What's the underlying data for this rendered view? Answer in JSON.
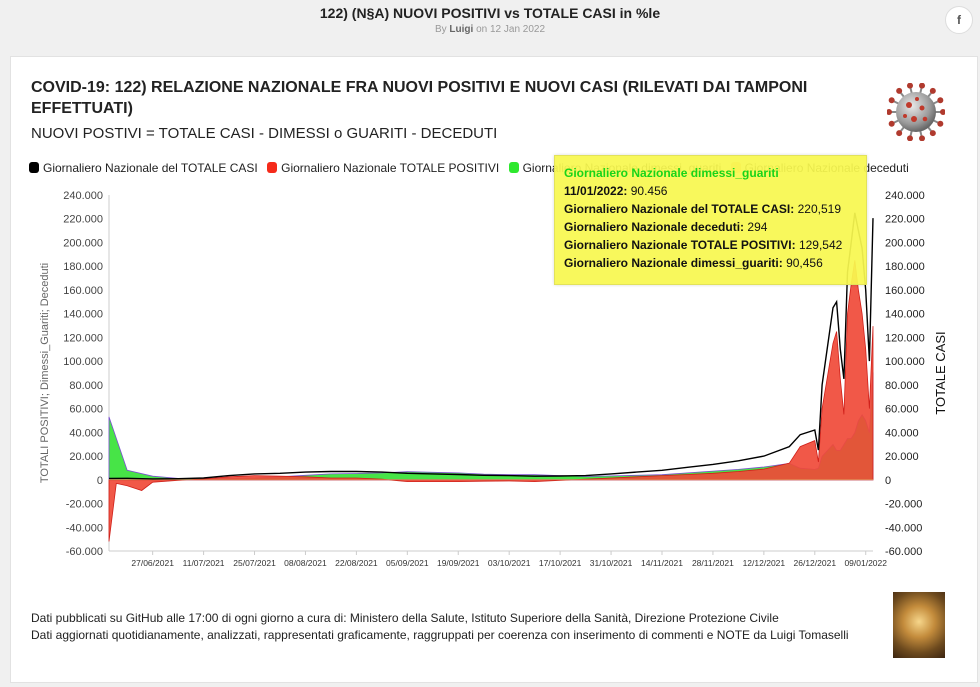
{
  "page": {
    "doc_title": "122) (N§A) NUOVI POSITIVI vs TOTALE CASI in %le",
    "byline_prefix": "By",
    "author": "Luigi",
    "byline_suffix": "on 12 Jan 2022",
    "share_icons": [
      "facebook-icon",
      "twitter-icon"
    ]
  },
  "chart_header": {
    "title": "COVID-19: 122) RELAZIONE NAZIONALE FRA NUOVI POSITIVI E NUOVI CASI (RILEVATI DAI TAMPONI EFFETTUATI)",
    "subtitle": "NUOVI POSTIVI = TOTALE CASI - DIMESSI o GUARITI - DECEDUTI",
    "icon": "coronavirus-icon"
  },
  "legend": [
    {
      "label": "Giornaliero Nazionale del TOTALE CASI",
      "color": "#000000"
    },
    {
      "label": "Giornaliero Nazionale TOTALE POSITIVI",
      "color": "#f52a1a"
    },
    {
      "label": "Giornaliero Nazionale dimessi_guariti",
      "color": "#2ee82e"
    },
    {
      "label": "Giornaliero Nazionale deceduti",
      "color": "#f5b38a"
    }
  ],
  "tooltip": {
    "title": "Giornaliero Nazionale dimessi_guariti",
    "rows": [
      {
        "label": "11/01/2022:",
        "value": "90.456"
      },
      {
        "label": "Giornaliero Nazionale del TOTALE CASI:",
        "value": "220,519"
      },
      {
        "label": "Giornaliero Nazionale deceduti:",
        "value": "294"
      },
      {
        "label": "Giornaliero Nazionale TOTALE POSITIVI:",
        "value": "129,542"
      },
      {
        "label": "Giornaliero Nazionale dimessi_guariti:",
        "value": "90,456"
      }
    ]
  },
  "footer": {
    "line1": "Dati pubblicati su GitHub alle 17:00 di ogni giorno a cura di: Ministero della Salute, Istituto Superiore della Sanità, Direzione Protezione Civile",
    "line2": "Dati aggiornati quotidianamente, analizzati, rappresentati graficamente, raggruppati per coerenza con inserimento di commenti e NOTE da Luigi Tomaselli"
  },
  "chart_data": {
    "type": "area",
    "ylabel_left": "TOTALI POSITIVI; Dimessi_Guariti; Deceduti",
    "ylabel_right": "TOTALE CASI",
    "ylim": [
      -60000,
      240000
    ],
    "yticks_left": [
      "240.000",
      "220.000",
      "200.000",
      "180.000",
      "160.000",
      "140.000",
      "120.000",
      "100.000",
      "80.000",
      "60.000",
      "40.000",
      "20.000",
      "0",
      "-20.000",
      "-40.000",
      "-60.000"
    ],
    "yticks_right": [
      "240.000",
      "220.000",
      "200.000",
      "180.000",
      "160.000",
      "140.000",
      "120.000",
      "100.000",
      "80.000",
      "60.000",
      "40.000",
      "20.000",
      "0",
      "-20.000",
      "-40.000",
      "-60.000"
    ],
    "xticks": [
      "27/06/2021",
      "11/07/2021",
      "25/07/2021",
      "08/08/2021",
      "22/08/2021",
      "05/09/2021",
      "19/09/2021",
      "03/10/2021",
      "17/10/2021",
      "31/10/2021",
      "14/11/2021",
      "28/11/2021",
      "12/12/2021",
      "26/12/2021",
      "09/01/2022"
    ],
    "x_range": [
      "2021-06-15",
      "2022-01-11"
    ],
    "series": [
      {
        "name": "Giornaliero Nazionale del TOTALE CASI",
        "color": "#000000",
        "points": [
          [
            "2021-06-15",
            1200
          ],
          [
            "2021-06-20",
            1300
          ],
          [
            "2021-06-27",
            800
          ],
          [
            "2021-07-04",
            900
          ],
          [
            "2021-07-11",
            1500
          ],
          [
            "2021-07-18",
            3500
          ],
          [
            "2021-07-25",
            5000
          ],
          [
            "2021-08-01",
            5500
          ],
          [
            "2021-08-08",
            6500
          ],
          [
            "2021-08-15",
            7000
          ],
          [
            "2021-08-22",
            7000
          ],
          [
            "2021-08-29",
            6500
          ],
          [
            "2021-09-05",
            5500
          ],
          [
            "2021-09-12",
            5000
          ],
          [
            "2021-09-19",
            4500
          ],
          [
            "2021-09-26",
            3800
          ],
          [
            "2021-10-03",
            3500
          ],
          [
            "2021-10-10",
            3000
          ],
          [
            "2021-10-17",
            3200
          ],
          [
            "2021-10-24",
            3500
          ],
          [
            "2021-10-31",
            5000
          ],
          [
            "2021-11-07",
            6500
          ],
          [
            "2021-11-14",
            8000
          ],
          [
            "2021-11-21",
            10500
          ],
          [
            "2021-11-28",
            13000
          ],
          [
            "2021-12-05",
            16000
          ],
          [
            "2021-12-12",
            20000
          ],
          [
            "2021-12-19",
            28000
          ],
          [
            "2021-12-22",
            38000
          ],
          [
            "2021-12-26",
            42000
          ],
          [
            "2021-12-27",
            25000
          ],
          [
            "2021-12-28",
            80000
          ],
          [
            "2021-12-31",
            145000
          ],
          [
            "2022-01-01",
            150000
          ],
          [
            "2022-01-02",
            110000
          ],
          [
            "2022-01-03",
            85000
          ],
          [
            "2022-01-04",
            175000
          ],
          [
            "2022-01-05",
            200000
          ],
          [
            "2022-01-06",
            225000
          ],
          [
            "2022-01-07",
            210000
          ],
          [
            "2022-01-08",
            195000
          ],
          [
            "2022-01-09",
            160000
          ],
          [
            "2022-01-10",
            100000
          ],
          [
            "2022-01-11",
            220519
          ]
        ]
      },
      {
        "name": "Giornaliero Nazionale TOTALE POSITIVI",
        "color": "#f52a1a",
        "points": [
          [
            "2021-06-15",
            -52000
          ],
          [
            "2021-06-17",
            -3000
          ],
          [
            "2021-06-20",
            -5000
          ],
          [
            "2021-06-24",
            -9000
          ],
          [
            "2021-06-27",
            -2000
          ],
          [
            "2021-07-04",
            -500
          ],
          [
            "2021-07-11",
            800
          ],
          [
            "2021-07-18",
            2500
          ],
          [
            "2021-07-25",
            3500
          ],
          [
            "2021-08-01",
            3000
          ],
          [
            "2021-08-08",
            2500
          ],
          [
            "2021-08-15",
            1500
          ],
          [
            "2021-08-22",
            1500
          ],
          [
            "2021-08-29",
            500
          ],
          [
            "2021-09-05",
            -1500
          ],
          [
            "2021-09-12",
            -1500
          ],
          [
            "2021-09-19",
            -1500
          ],
          [
            "2021-09-26",
            -1200
          ],
          [
            "2021-10-03",
            -1000
          ],
          [
            "2021-10-10",
            -1500
          ],
          [
            "2021-10-17",
            -500
          ],
          [
            "2021-10-24",
            500
          ],
          [
            "2021-10-31",
            1500
          ],
          [
            "2021-11-07",
            2500
          ],
          [
            "2021-11-14",
            3500
          ],
          [
            "2021-11-21",
            4500
          ],
          [
            "2021-11-28",
            5500
          ],
          [
            "2021-12-05",
            7000
          ],
          [
            "2021-12-12",
            9000
          ],
          [
            "2021-12-19",
            14000
          ],
          [
            "2021-12-22",
            28000
          ],
          [
            "2021-12-26",
            33000
          ],
          [
            "2021-12-27",
            15000
          ],
          [
            "2021-12-28",
            60000
          ],
          [
            "2021-12-31",
            115000
          ],
          [
            "2022-01-01",
            125000
          ],
          [
            "2022-01-02",
            85000
          ],
          [
            "2022-01-03",
            55000
          ],
          [
            "2022-01-04",
            140000
          ],
          [
            "2022-01-05",
            165000
          ],
          [
            "2022-01-06",
            185000
          ],
          [
            "2022-01-07",
            160000
          ],
          [
            "2022-01-08",
            140000
          ],
          [
            "2022-01-09",
            110000
          ],
          [
            "2022-01-10",
            60000
          ],
          [
            "2022-01-11",
            129542
          ]
        ]
      },
      {
        "name": "Giornaliero Nazionale dimessi_guariti",
        "color": "#2ee82e",
        "points": [
          [
            "2021-06-15",
            53000
          ],
          [
            "2021-06-20",
            8000
          ],
          [
            "2021-06-27",
            3000
          ],
          [
            "2021-07-04",
            1200
          ],
          [
            "2021-07-11",
            1200
          ],
          [
            "2021-07-18",
            1200
          ],
          [
            "2021-07-25",
            1500
          ],
          [
            "2021-08-01",
            2500
          ],
          [
            "2021-08-08",
            3800
          ],
          [
            "2021-08-15",
            5000
          ],
          [
            "2021-08-22",
            5300
          ],
          [
            "2021-08-29",
            5800
          ],
          [
            "2021-09-05",
            6800
          ],
          [
            "2021-09-12",
            6300
          ],
          [
            "2021-09-19",
            5800
          ],
          [
            "2021-09-26",
            4800
          ],
          [
            "2021-10-03",
            4300
          ],
          [
            "2021-10-10",
            4300
          ],
          [
            "2021-10-17",
            3500
          ],
          [
            "2021-10-24",
            2800
          ],
          [
            "2021-10-31",
            3300
          ],
          [
            "2021-11-07",
            3800
          ],
          [
            "2021-11-14",
            4300
          ],
          [
            "2021-11-21",
            5800
          ],
          [
            "2021-11-28",
            7300
          ],
          [
            "2021-12-05",
            8800
          ],
          [
            "2021-12-12",
            10800
          ],
          [
            "2021-12-19",
            13800
          ],
          [
            "2021-12-22",
            9800
          ],
          [
            "2021-12-26",
            8800
          ],
          [
            "2021-12-27",
            9800
          ],
          [
            "2021-12-28",
            19800
          ],
          [
            "2021-12-31",
            29800
          ],
          [
            "2022-01-01",
            24800
          ],
          [
            "2022-01-02",
            24800
          ],
          [
            "2022-01-03",
            29800
          ],
          [
            "2022-01-04",
            34800
          ],
          [
            "2022-01-05",
            34800
          ],
          [
            "2022-01-06",
            39800
          ],
          [
            "2022-01-07",
            49800
          ],
          [
            "2022-01-08",
            54800
          ],
          [
            "2022-01-09",
            49800
          ],
          [
            "2022-01-10",
            39800
          ],
          [
            "2022-01-11",
            90456
          ]
        ]
      },
      {
        "name": "Giornaliero Nazionale deceduti",
        "color": "#f5b38a",
        "points": [
          [
            "2021-06-15",
            50
          ],
          [
            "2021-07-01",
            40
          ],
          [
            "2021-08-01",
            30
          ],
          [
            "2021-09-01",
            60
          ],
          [
            "2021-10-01",
            50
          ],
          [
            "2021-11-01",
            60
          ],
          [
            "2021-12-01",
            100
          ],
          [
            "2021-12-20",
            150
          ],
          [
            "2022-01-01",
            180
          ],
          [
            "2022-01-11",
            294
          ]
        ]
      }
    ]
  }
}
